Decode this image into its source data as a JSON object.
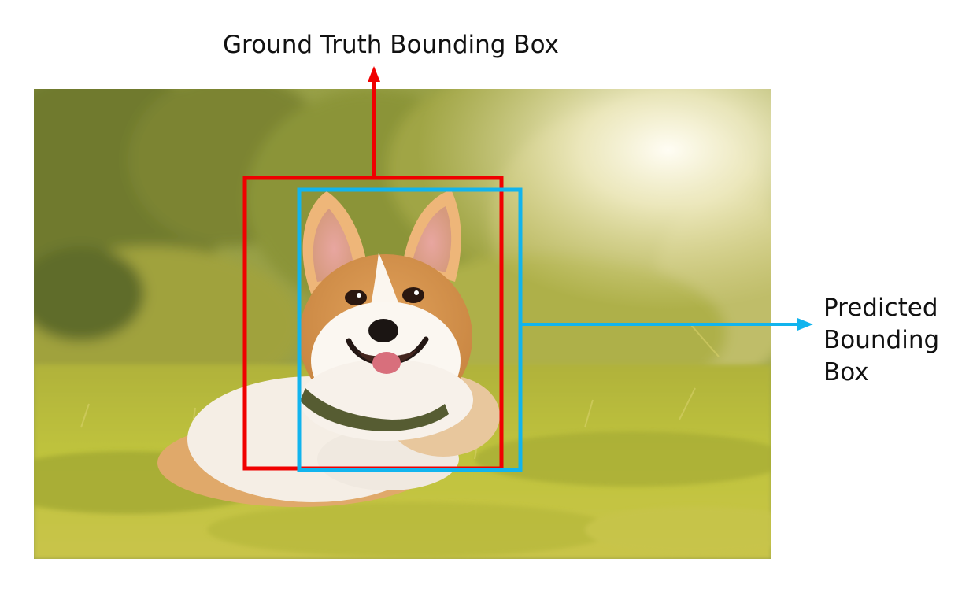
{
  "annotations": {
    "ground_truth_label": "Ground Truth Bounding Box",
    "predicted_label_lines": [
      "Predicted",
      "Bounding",
      "Box"
    ]
  },
  "colors": {
    "ground_truth_box": "#f00000",
    "predicted_box": "#11b4ee",
    "background": "#ffffff"
  },
  "photo": {
    "subject": "corgi dog lying in grass",
    "scene": "sunny meadow with blurred trees"
  }
}
